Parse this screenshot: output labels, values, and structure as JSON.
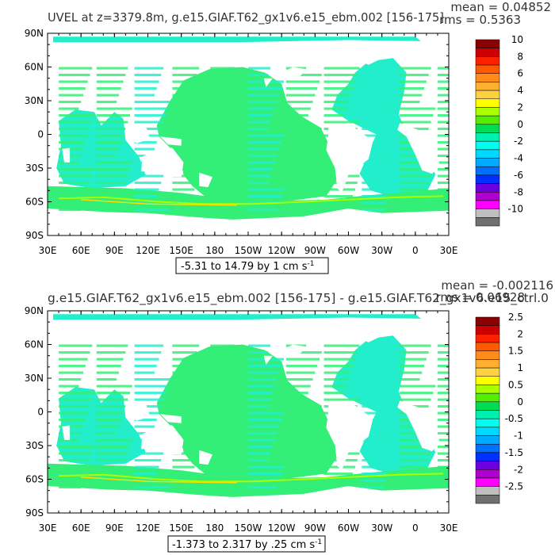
{
  "chart_data": [
    {
      "type": "heatmap",
      "title": "UVEL at z=3379.8m, g.e15.GIAF.T62_gx1v6.e15_ebm.002 [156-175]",
      "stats": {
        "mean": "mean = 0.04852",
        "rms": "rms = 0.5363"
      },
      "x_ticks": [
        "30E",
        "60E",
        "90E",
        "120E",
        "150E",
        "180",
        "150W",
        "120W",
        "90W",
        "60W",
        "30W",
        "0",
        "30E"
      ],
      "y_ticks": [
        "90N",
        "60N",
        "30N",
        "0",
        "30S",
        "60S",
        "90S"
      ],
      "xlim": [
        30,
        390
      ],
      "ylim": [
        -90,
        90
      ],
      "contour_info": "-5.31 to 14.79 by 1 cm s",
      "contour_unit_exp": "-1",
      "colorbar_labels": [
        "10",
        "8",
        "6",
        "4",
        "2",
        "0",
        "-2",
        "-4",
        "-6",
        "-8",
        "-10"
      ],
      "colorbar_colors": [
        "#8b0000",
        "#cc0000",
        "#ff2000",
        "#ff5a00",
        "#ff8c1a",
        "#ffb030",
        "#ffd040",
        "#ffff00",
        "#aaff00",
        "#55ee00",
        "#00dd55",
        "#00f0b0",
        "#00ffee",
        "#00d8ff",
        "#00aaff",
        "#0070ff",
        "#0030ff",
        "#6a00e0",
        "#b000d0",
        "#ff00ff",
        "#bfbfbf",
        "#707070"
      ],
      "field_colors": {
        "main": "#33ee77",
        "alt": "#22eecc",
        "strong": "#aaff00",
        "peak": "#ffdd00"
      }
    },
    {
      "type": "heatmap",
      "title": "g.e15.GIAF.T62_gx1v6.e15_ebm.002 [156-175] - g.e15.GIAF.T62_gx1v6.e15_ctrl.0",
      "stats": {
        "mean": "mean = -0.002116",
        "rms": "rms = 0.06928"
      },
      "x_ticks": [
        "30E",
        "60E",
        "90E",
        "120E",
        "150E",
        "180",
        "150W",
        "120W",
        "90W",
        "60W",
        "30W",
        "0",
        "30E"
      ],
      "y_ticks": [
        "90N",
        "60N",
        "30N",
        "0",
        "30S",
        "60S",
        "90S"
      ],
      "xlim": [
        30,
        390
      ],
      "ylim": [
        -90,
        90
      ],
      "contour_info": "-1.373 to 2.317 by .25 cm s",
      "contour_unit_exp": "-1",
      "colorbar_labels": [
        "2.5",
        "2",
        "1.5",
        "1",
        "0.5",
        "0",
        "-0.5",
        "-1",
        "-1.5",
        "-2",
        "-2.5"
      ],
      "colorbar_colors": [
        "#8b0000",
        "#cc0000",
        "#ff2000",
        "#ff5a00",
        "#ff8c1a",
        "#ffb030",
        "#ffd040",
        "#ffff00",
        "#aaff00",
        "#55ee00",
        "#00dd55",
        "#00f0b0",
        "#00ffee",
        "#00d8ff",
        "#00aaff",
        "#0070ff",
        "#0030ff",
        "#6a00e0",
        "#b000d0",
        "#ff00ff",
        "#bfbfbf",
        "#707070"
      ],
      "field_colors": {
        "main": "#33ee77",
        "alt": "#22eecc",
        "strong": "#aaff00",
        "peak": "#ffdd00"
      }
    }
  ]
}
